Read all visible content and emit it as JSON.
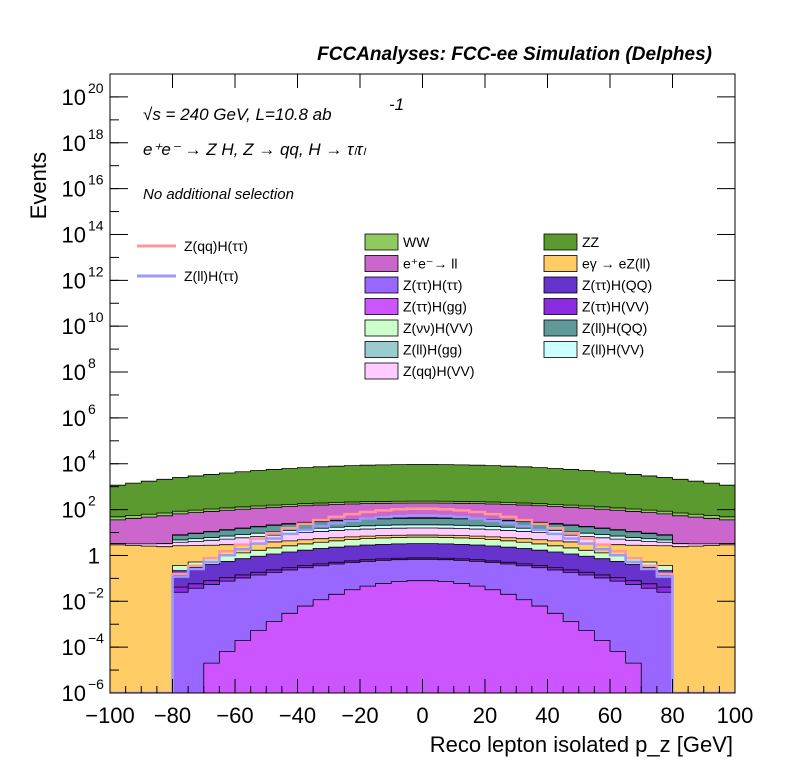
{
  "chart_data": {
    "type": "area",
    "title": "FCCAnalyses: FCC-ee Simulation (Delphes)",
    "xlabel": "Reco lepton isolated p_z [GeV]",
    "ylabel": "Events",
    "xlim": [
      -100,
      100
    ],
    "ylim": [
      1e-06,
      1e+21
    ],
    "yscale": "log",
    "x_ticks": [
      "−100",
      "−80",
      "−60",
      "−40",
      "−20",
      "0",
      "20",
      "40",
      "60",
      "80",
      "100"
    ],
    "y_ticks": [
      {
        "base": "10",
        "exp": "−6"
      },
      {
        "base": "10",
        "exp": "−4"
      },
      {
        "base": "10",
        "exp": "−2"
      },
      {
        "base": "1",
        "exp": ""
      },
      {
        "base": "10",
        "exp": "2"
      },
      {
        "base": "10",
        "exp": "4"
      },
      {
        "base": "10",
        "exp": "6"
      },
      {
        "base": "10",
        "exp": "8"
      },
      {
        "base": "10",
        "exp": "10"
      },
      {
        "base": "10",
        "exp": "12"
      },
      {
        "base": "10",
        "exp": "14"
      },
      {
        "base": "10",
        "exp": "16"
      },
      {
        "base": "10",
        "exp": "18"
      },
      {
        "base": "10",
        "exp": "20"
      }
    ],
    "annotations": {
      "energy": "√s = 240 GeV, L=10.8 ab",
      "energy_exp": "-1",
      "process": "e⁺e⁻ → Z H, Z → qq, H → τₗτₗ",
      "selection": "No additional selection"
    },
    "bins": 40,
    "stack_bottom_to_top": [
      "Z(ττ)H(gg)",
      "Z(ττ)H(ττ)",
      "Z(ττ)H(VV)",
      "Z(ττ)H(QQ)",
      "Z(νν)H(VV)",
      "eγ → eZ(ll)",
      "Z(qq)H(VV)",
      "Z(ll)H(VV)",
      "Z(ll)H(QQ)",
      "Z(ll)H(gg)",
      "e⁺e⁻→ ll",
      "WW",
      "ZZ"
    ],
    "stacked_series": [
      {
        "name": "WW",
        "color": "#8fca5f",
        "peak": 40,
        "edge": 12
      },
      {
        "name": "ZZ",
        "color": "#5a9a2e",
        "peak": 9000,
        "edge": 1000
      },
      {
        "name": "e⁺e⁻→ ll",
        "color": "#cc66cc",
        "peak": 150,
        "edge": 30
      },
      {
        "name": "eγ → eZ(ll)",
        "color": "#ffcc66",
        "peak": 1.5,
        "edge": 3
      },
      {
        "name": "Z(ττ)H(ττ)",
        "color": "#9966ff",
        "peak": 0.6,
        "edge": 0.003
      },
      {
        "name": "Z(ττ)H(QQ)",
        "color": "#6633cc",
        "peak": 2.5,
        "edge": 0.03
      },
      {
        "name": "Z(ττ)H(gg)",
        "color": "#cc55ff",
        "peak": 0.08,
        "edge": 0.0
      },
      {
        "name": "Z(ττ)H(VV)",
        "color": "#8b2be2",
        "peak": 0.1,
        "edge": 0.005
      },
      {
        "name": "Z(νν)H(VV)",
        "color": "#ccffcc",
        "peak": 3,
        "edge": 0.02
      },
      {
        "name": "Z(ll)H(QQ)",
        "color": "#5f9999",
        "peak": 20,
        "edge": 0.8
      },
      {
        "name": "Z(ll)H(gg)",
        "color": "#99cccc",
        "peak": 2,
        "edge": 0.1
      },
      {
        "name": "Z(ll)H(VV)",
        "color": "#ccffff",
        "peak": 6,
        "edge": 0.3
      },
      {
        "name": "Z(qq)H(VV)",
        "color": "#ffccff",
        "peak": 8,
        "edge": 0.3
      }
    ],
    "line_series": [
      {
        "name": "Z(qq)H(ττ)",
        "color": "#ff9999",
        "peak": 110,
        "edge": 0.002
      },
      {
        "name": "Z(ll)H(ττ)",
        "color": "#9999ff",
        "peak": 55,
        "edge": 0.002
      }
    ],
    "legend_placement": "top-center",
    "grid": false
  }
}
